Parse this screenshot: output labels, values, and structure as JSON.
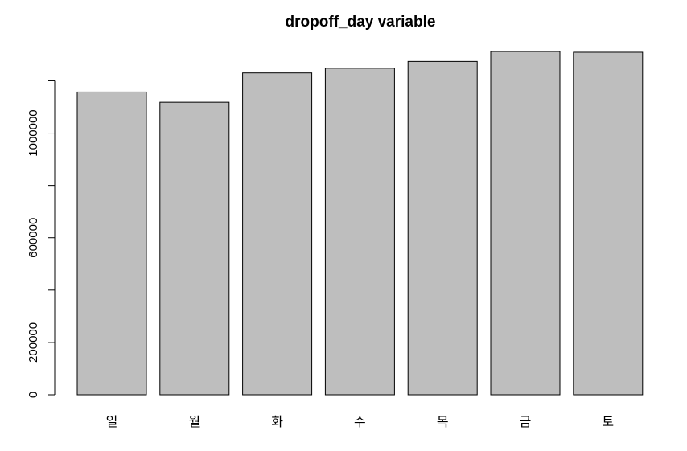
{
  "chart_data": {
    "type": "bar",
    "title": "dropoff_day variable",
    "xlabel": "",
    "ylabel": "",
    "categories": [
      "일",
      "월",
      "화",
      "수",
      "목",
      "금",
      "토"
    ],
    "values": [
      1157000,
      1118000,
      1230000,
      1248000,
      1274000,
      1312000,
      1309000
    ],
    "ylim": [
      0,
      1312000
    ],
    "y_ticks": [
      0,
      200000,
      400000,
      600000,
      800000,
      1000000,
      1200000
    ],
    "y_tick_labels": [
      "0",
      "200000",
      "",
      "600000",
      "",
      "1000000",
      ""
    ],
    "bar_color": "#bebebe",
    "grid": false,
    "legend": "none"
  }
}
